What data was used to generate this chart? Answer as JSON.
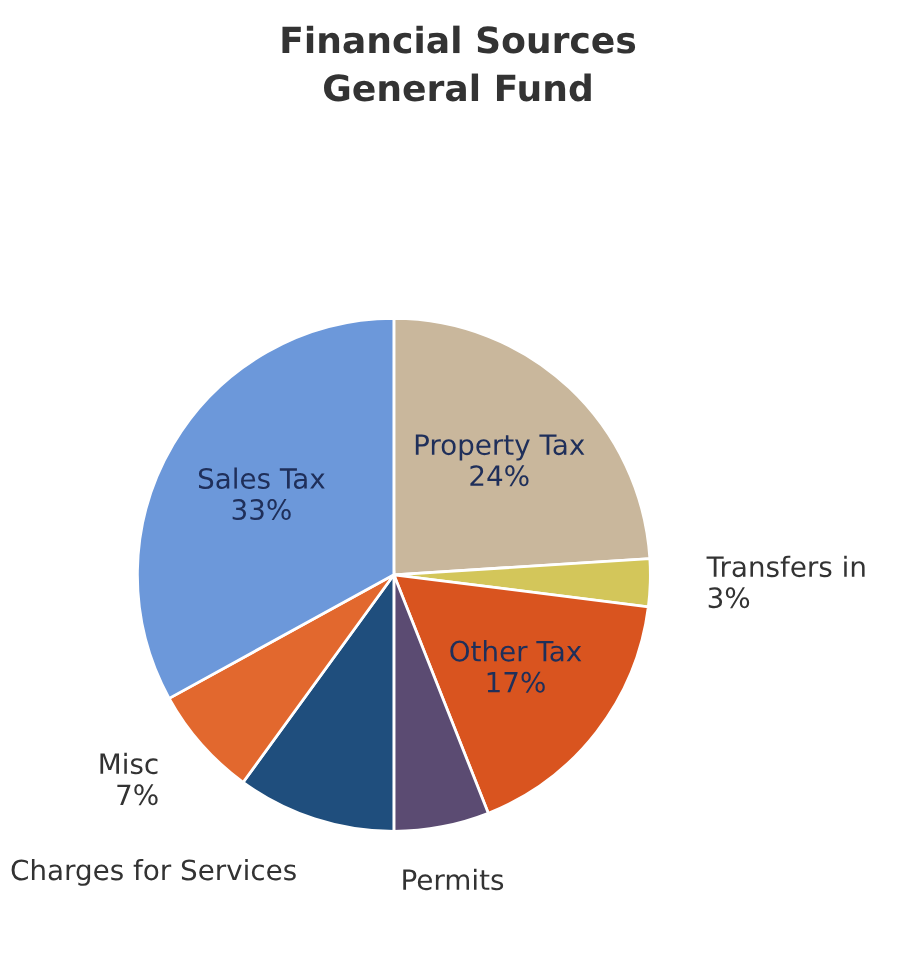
{
  "chart_data": {
    "type": "pie",
    "title": "Financial Sources",
    "subtitle": "General Fund",
    "categories": [
      "Property Tax",
      "Transfers in",
      "Other Tax",
      "Permits",
      "Charges for Services",
      "Misc",
      "Sales Tax"
    ],
    "values": [
      24,
      3,
      17,
      6,
      10,
      7,
      33
    ],
    "value_labels": [
      "24%",
      "3%",
      "17%",
      null,
      null,
      "7%",
      "33%"
    ],
    "colors": [
      "#c9b79c",
      "#d3c65a",
      "#d9541f",
      "#5b4b72",
      "#1f4e7d",
      "#e2682e",
      "#6c98da"
    ]
  }
}
